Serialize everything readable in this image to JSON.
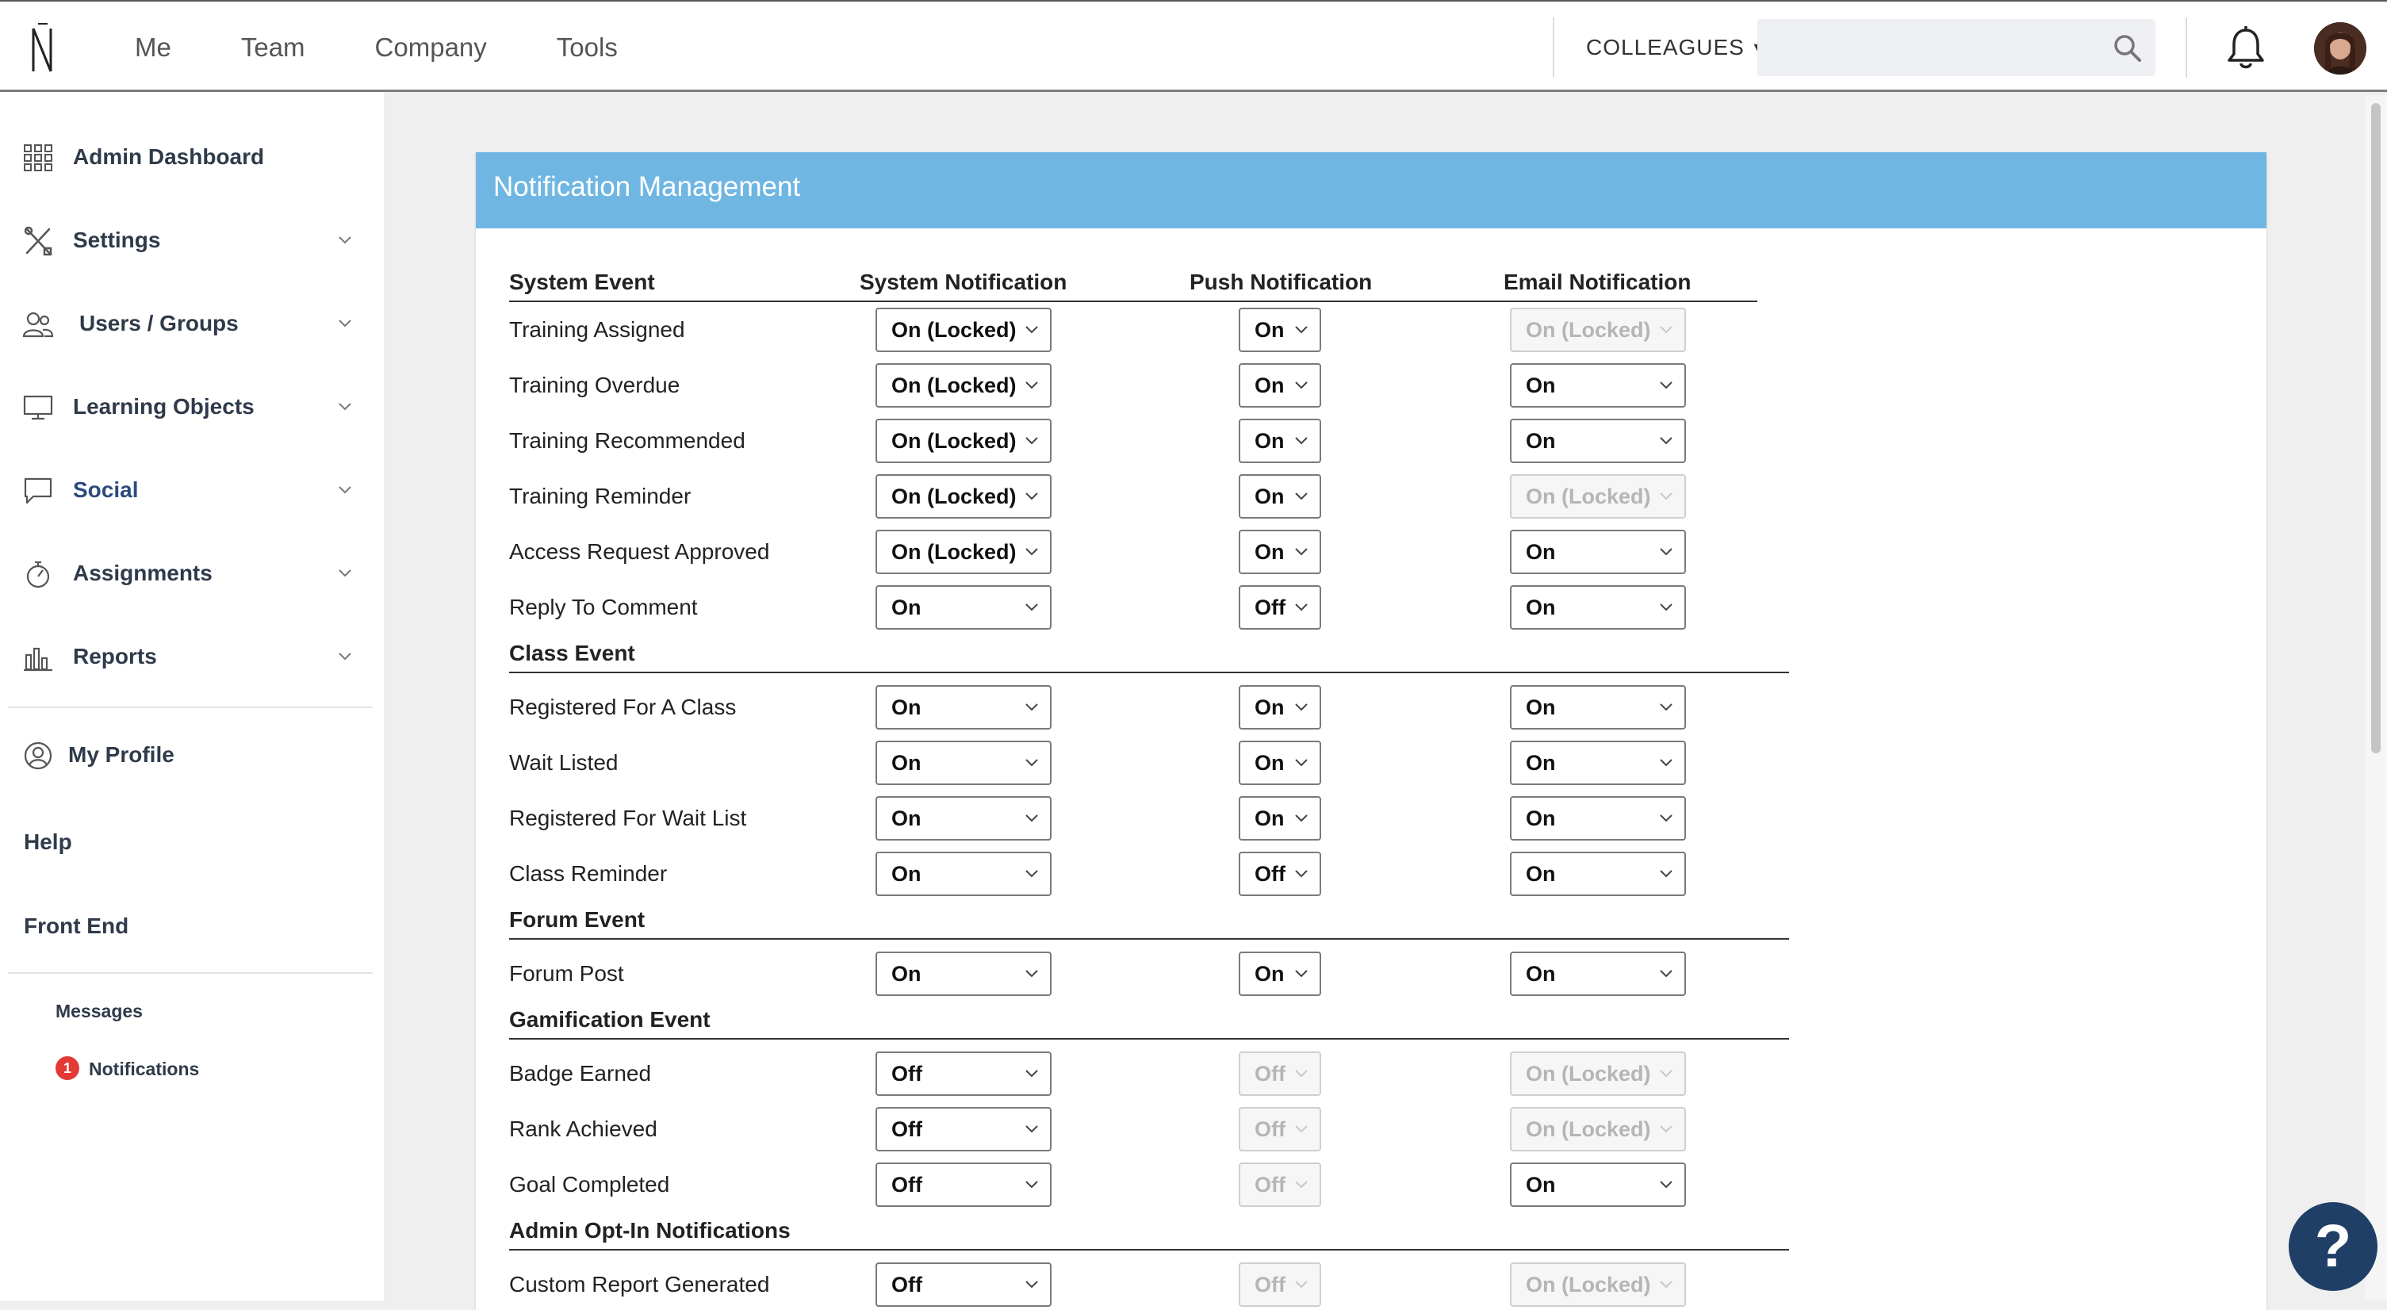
{
  "header": {
    "nav": [
      "Me",
      "Team",
      "Company",
      "Tools"
    ],
    "colleagues_label": "COLLEAGUES",
    "search_placeholder": "",
    "logo_icon": "app-logo-icon",
    "bell_icon": "bell-icon",
    "avatar_icon": "avatar"
  },
  "sidebar": {
    "items": [
      {
        "label": "Admin Dashboard",
        "icon": "grid-icon"
      },
      {
        "label": "Settings",
        "icon": "tools-icon"
      },
      {
        "label": "Users / Groups",
        "icon": "users-icon"
      },
      {
        "label": "Learning Objects",
        "icon": "monitor-icon"
      },
      {
        "label": "Social",
        "icon": "chat-icon"
      },
      {
        "label": "Assignments",
        "icon": "stopwatch-icon"
      },
      {
        "label": "Reports",
        "icon": "bar-chart-icon"
      }
    ],
    "my_profile": "My Profile",
    "help": "Help",
    "front_end": "Front End",
    "messages": "Messages",
    "notifications": "Notifications",
    "notifications_badge": "1"
  },
  "card": {
    "title": "Notification Management",
    "columns": [
      "System Event",
      "System Notification",
      "Push Notification",
      "Email Notification"
    ]
  },
  "sections": [
    {
      "title": "",
      "rows": [
        {
          "label": "Training Assigned",
          "system": "On (Locked)",
          "push": "On",
          "email": "On (Locked)",
          "email_disabled": true,
          "push_disabled": false
        },
        {
          "label": "Training Overdue",
          "system": "On (Locked)",
          "push": "On",
          "email": "On",
          "email_disabled": false,
          "push_disabled": false
        },
        {
          "label": "Training Recommended",
          "system": "On (Locked)",
          "push": "On",
          "email": "On",
          "email_disabled": false,
          "push_disabled": false
        },
        {
          "label": "Training Reminder",
          "system": "On (Locked)",
          "push": "On",
          "email": "On (Locked)",
          "email_disabled": true,
          "push_disabled": false
        },
        {
          "label": "Access Request Approved",
          "system": "On (Locked)",
          "push": "On",
          "email": "On",
          "email_disabled": false,
          "push_disabled": false
        },
        {
          "label": "Reply To Comment",
          "system": "On",
          "push": "Off",
          "email": "On",
          "email_disabled": false,
          "push_disabled": false
        }
      ]
    },
    {
      "title": "Class Event",
      "rows": [
        {
          "label": "Registered For A Class",
          "system": "On",
          "push": "On",
          "email": "On",
          "email_disabled": false,
          "push_disabled": false
        },
        {
          "label": "Wait Listed",
          "system": "On",
          "push": "On",
          "email": "On",
          "email_disabled": false,
          "push_disabled": false
        },
        {
          "label": "Registered For Wait List",
          "system": "On",
          "push": "On",
          "email": "On",
          "email_disabled": false,
          "push_disabled": false
        },
        {
          "label": "Class Reminder",
          "system": "On",
          "push": "Off",
          "email": "On",
          "email_disabled": false,
          "push_disabled": false
        }
      ]
    },
    {
      "title": "Forum Event",
      "rows": [
        {
          "label": "Forum Post",
          "system": "On",
          "push": "On",
          "email": "On",
          "email_disabled": false,
          "push_disabled": false
        }
      ]
    },
    {
      "title": "Gamification Event",
      "rows": [
        {
          "label": "Badge Earned",
          "system": "Off",
          "push": "Off",
          "email": "On (Locked)",
          "email_disabled": true,
          "push_disabled": true
        },
        {
          "label": "Rank Achieved",
          "system": "Off",
          "push": "Off",
          "email": "On (Locked)",
          "email_disabled": true,
          "push_disabled": true
        },
        {
          "label": "Goal Completed",
          "system": "Off",
          "push": "Off",
          "email": "On",
          "email_disabled": false,
          "push_disabled": true
        }
      ]
    },
    {
      "title": "Admin Opt-In Notifications",
      "rows": [
        {
          "label": "Custom Report Generated",
          "system": "Off",
          "push": "Off",
          "email": "On (Locked)",
          "email_disabled": true,
          "push_disabled": true
        }
      ]
    }
  ],
  "help_button": "?"
}
